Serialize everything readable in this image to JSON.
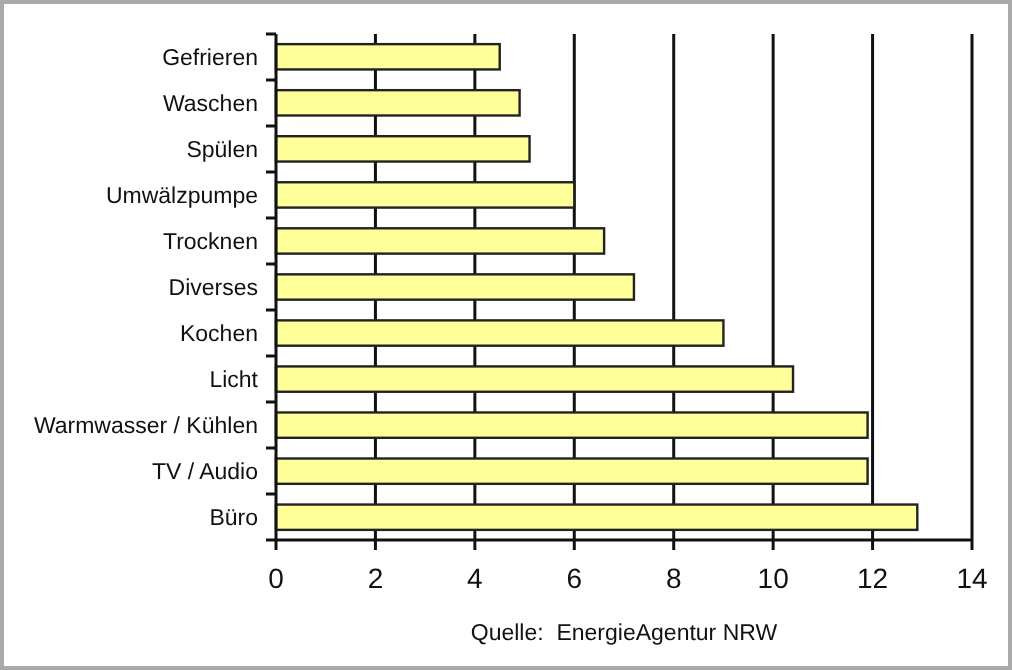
{
  "chart_data": {
    "type": "bar",
    "orientation": "horizontal",
    "categories": [
      "Gefrieren",
      "Waschen",
      "Spülen",
      "Umwälzpumpe",
      "Trocknen",
      "Diverses",
      "Kochen",
      "Licht",
      "Warmwasser / Kühlen",
      "TV / Audio",
      "Büro"
    ],
    "values": [
      4.5,
      4.9,
      5.1,
      6.0,
      6.6,
      7.2,
      9.0,
      10.4,
      11.9,
      11.9,
      12.9
    ],
    "color": "#ffff99",
    "xlim": [
      0,
      14
    ],
    "xticks": [
      0,
      2,
      4,
      6,
      8,
      10,
      12,
      14
    ],
    "grid": "x",
    "annotations": [
      "Quelle:  EnergieAgentur NRW"
    ]
  }
}
